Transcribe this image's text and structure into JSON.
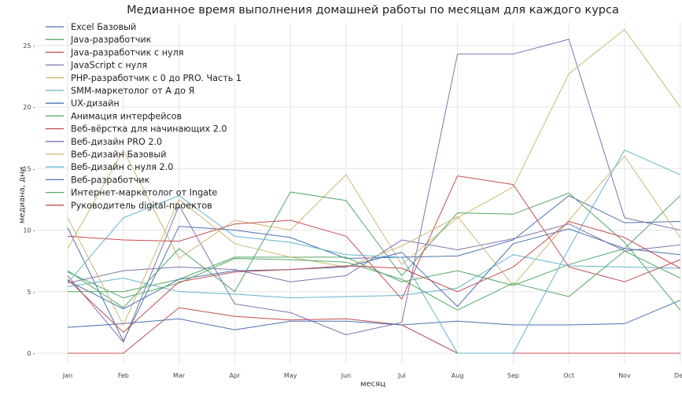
{
  "chart_data": {
    "type": "line",
    "title": "Медианное время выполнения домашней работы по месяцам для каждого курса",
    "xlabel": "месяц",
    "ylabel": "медиана, дни",
    "categories": [
      "Jan",
      "Feb",
      "Mar",
      "Apr",
      "May",
      "Jun",
      "Jul",
      "Aug",
      "Sep",
      "Oct",
      "Nov",
      "Dec"
    ],
    "ylim": [
      -1,
      27
    ],
    "yticks": [
      0,
      5,
      10,
      15,
      20,
      25
    ],
    "grid": true,
    "legend_position": "top-left",
    "series": [
      {
        "name": "Excel Базовый",
        "color": "#4c72b0",
        "values": [
          10.2,
          1.0,
          10.3,
          10.0,
          9.4,
          7.7,
          7.8,
          7.9,
          9.2,
          12.8,
          10.6,
          10.7
        ]
      },
      {
        "name": "Java-разработчик",
        "color": "#55a868",
        "values": [
          5.0,
          5.0,
          6.0,
          7.8,
          7.8,
          7.8,
          5.8,
          6.7,
          5.5,
          7.2,
          8.5,
          12.8
        ]
      },
      {
        "name": "Java-разработчик с нуля",
        "color": "#c44e52",
        "values": [
          0.0,
          0.0,
          3.7,
          3.0,
          2.7,
          2.8,
          2.3,
          0.0,
          0.0,
          0.0,
          0.0,
          0.0
        ]
      },
      {
        "name": "JavaScript с нуля",
        "color": "#8172b2",
        "values": [
          6.3,
          0.9,
          12.0,
          4.0,
          3.3,
          1.5,
          2.5,
          24.3,
          24.3,
          25.5,
          11.0,
          10.0
        ]
      },
      {
        "name": "PHP-разработчик с 0 до PRO. Часть 1",
        "color": "#ccb974",
        "values": [
          8.5,
          16.5,
          7.7,
          10.8,
          10.0,
          14.5,
          7.2,
          11.0,
          13.5,
          22.7,
          26.3,
          20.0
        ]
      },
      {
        "name": "SMM-маркетолог от А до Я",
        "color": "#64b5cd",
        "values": [
          5.4,
          6.1,
          5.0,
          4.8,
          4.5,
          4.6,
          4.7,
          5.3,
          8.0,
          7.1,
          7.0,
          6.9
        ]
      },
      {
        "name": "UX-дизайн",
        "color": "#4c72b0",
        "values": [
          2.1,
          2.4,
          2.8,
          1.9,
          2.6,
          2.6,
          2.3,
          2.6,
          2.3,
          2.3,
          2.4,
          4.3
        ]
      },
      {
        "name": "Анимация интерфейсов",
        "color": "#55a868",
        "values": [
          6.7,
          3.7,
          8.5,
          5.0,
          13.1,
          12.4,
          6.3,
          11.4,
          11.3,
          13.0,
          9.0,
          3.5
        ]
      },
      {
        "name": "Веб-вёрстка для начинающих 2.0",
        "color": "#c44e52",
        "values": [
          9.5,
          9.2,
          9.1,
          10.5,
          10.8,
          9.5,
          4.4,
          14.4,
          13.7,
          7.0,
          5.8,
          7.6
        ]
      },
      {
        "name": "Веб-дизайн PRO 2.0",
        "color": "#8172b2",
        "values": [
          5.7,
          6.7,
          7.0,
          6.8,
          5.8,
          6.3,
          9.2,
          8.4,
          9.3,
          10.5,
          8.3,
          8.8
        ]
      },
      {
        "name": "Веб-дизайн Базовый",
        "color": "#ccb974",
        "values": [
          11.0,
          2.3,
          12.5,
          8.9,
          7.8,
          7.0,
          8.7,
          11.1,
          5.5,
          10.8,
          16.0,
          9.4
        ]
      },
      {
        "name": "Веб-дизайн с нуля 2.0",
        "color": "#64b5cd",
        "values": [
          5.7,
          11.0,
          12.8,
          9.5,
          9.0,
          8.0,
          7.8,
          0.0,
          0.0,
          8.5,
          16.5,
          14.5
        ]
      },
      {
        "name": "Веб-разработчик",
        "color": "#4c72b0",
        "values": [
          5.9,
          3.6,
          6.0,
          6.7,
          6.8,
          7.0,
          8.2,
          3.8,
          8.9,
          10.1,
          8.5,
          8.0
        ]
      },
      {
        "name": "Интернет-маркетолог от Ingate",
        "color": "#55a868",
        "values": [
          6.6,
          4.5,
          5.7,
          7.7,
          7.6,
          7.4,
          6.0,
          3.5,
          5.7,
          4.6,
          8.3,
          6.1
        ]
      },
      {
        "name": "Руководитель digital-проектов",
        "color": "#c44e52",
        "values": [
          6.0,
          1.7,
          5.8,
          6.6,
          6.8,
          7.1,
          6.9,
          5.0,
          7.0,
          10.7,
          9.4,
          6.9
        ]
      }
    ]
  }
}
